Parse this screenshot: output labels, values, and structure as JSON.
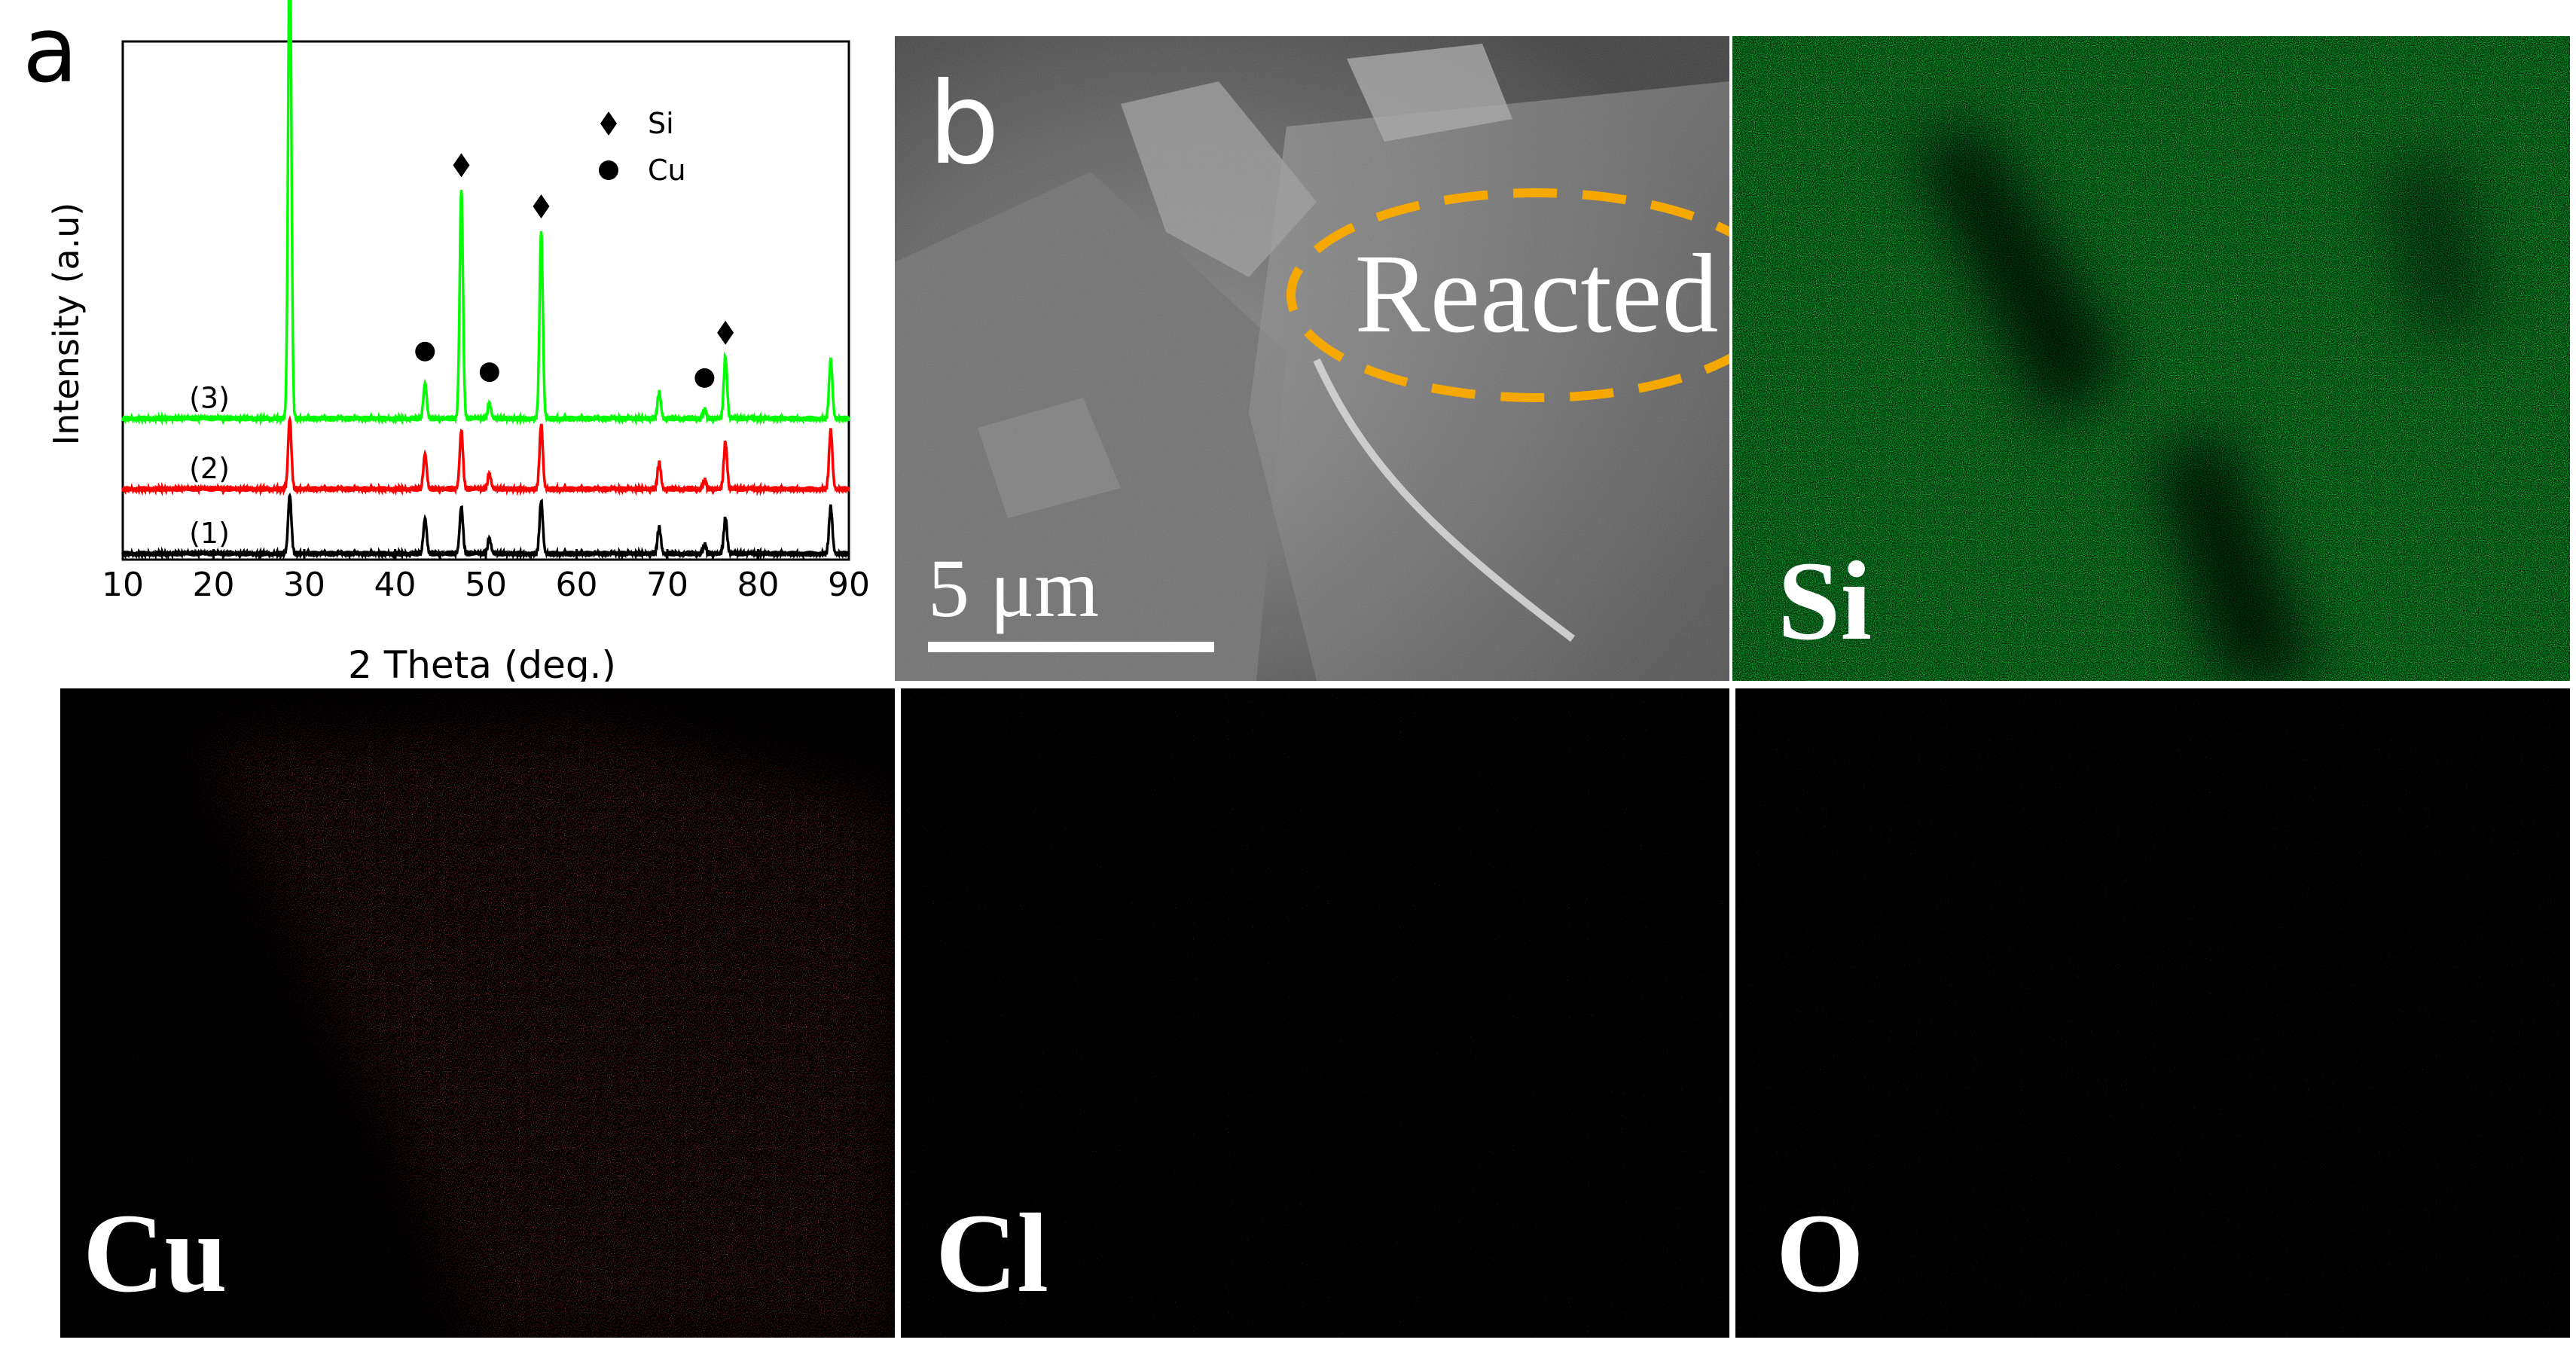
{
  "figure": {
    "panel_a": {
      "label": "a",
      "chart_data": {
        "type": "line",
        "title": "",
        "xlabel": "2 Theta (deg.)",
        "ylabel": "Intensity (a.u)",
        "xlim": [
          10,
          90
        ],
        "xticks": [
          10,
          20,
          30,
          40,
          50,
          60,
          70,
          80,
          90
        ],
        "grid": false,
        "legend_position": "top-right",
        "legend": [
          {
            "marker": "diamond",
            "label": "Si"
          },
          {
            "marker": "circle",
            "label": "Cu"
          }
        ],
        "series": [
          {
            "name": "(1)",
            "color": "#000000",
            "baseline": 0,
            "peaks": [
              {
                "x": 28.4,
                "h": 0.2
              },
              {
                "x": 43.3,
                "h": 0.12
              },
              {
                "x": 47.3,
                "h": 0.16
              },
              {
                "x": 50.4,
                "h": 0.05
              },
              {
                "x": 56.1,
                "h": 0.18
              },
              {
                "x": 69.1,
                "h": 0.09
              },
              {
                "x": 74.1,
                "h": 0.03
              },
              {
                "x": 76.4,
                "h": 0.12
              },
              {
                "x": 88.0,
                "h": 0.16
              }
            ]
          },
          {
            "name": "(2)",
            "color": "#ff0000",
            "baseline": 0.22,
            "peaks": [
              {
                "x": 28.4,
                "h": 0.24
              },
              {
                "x": 43.3,
                "h": 0.12
              },
              {
                "x": 47.3,
                "h": 0.2
              },
              {
                "x": 50.4,
                "h": 0.05
              },
              {
                "x": 56.1,
                "h": 0.22
              },
              {
                "x": 69.1,
                "h": 0.09
              },
              {
                "x": 74.1,
                "h": 0.03
              },
              {
                "x": 76.4,
                "h": 0.16
              },
              {
                "x": 88.0,
                "h": 0.2
              }
            ]
          },
          {
            "name": "(3)",
            "color": "#00ff00",
            "baseline": 0.46,
            "peaks": [
              {
                "x": 28.4,
                "h": 1.66
              },
              {
                "x": 43.3,
                "h": 0.12
              },
              {
                "x": 47.3,
                "h": 0.78
              },
              {
                "x": 50.4,
                "h": 0.05
              },
              {
                "x": 56.1,
                "h": 0.64
              },
              {
                "x": 69.1,
                "h": 0.09
              },
              {
                "x": 74.1,
                "h": 0.03
              },
              {
                "x": 76.4,
                "h": 0.21
              },
              {
                "x": 88.0,
                "h": 0.2
              }
            ]
          }
        ],
        "markers": [
          {
            "type": "diamond",
            "x": 28.4
          },
          {
            "type": "diamond",
            "x": 47.3
          },
          {
            "type": "diamond",
            "x": 56.1
          },
          {
            "type": "diamond",
            "x": 76.4
          },
          {
            "type": "circle",
            "x": 43.3
          },
          {
            "type": "circle",
            "x": 50.4
          },
          {
            "type": "circle",
            "x": 74.1
          }
        ]
      }
    },
    "panel_b": {
      "label": "b",
      "annotation": "Reacted",
      "scale_bar": "5 μm",
      "annotation_color": "#f5a800"
    },
    "maps": [
      {
        "element": "Si",
        "color": "#19c819"
      },
      {
        "element": "Cu",
        "color": "#ff1a1a"
      },
      {
        "element": "Cl",
        "color": "#d8d8d8"
      },
      {
        "element": "O",
        "color": "#c8602a"
      }
    ]
  }
}
